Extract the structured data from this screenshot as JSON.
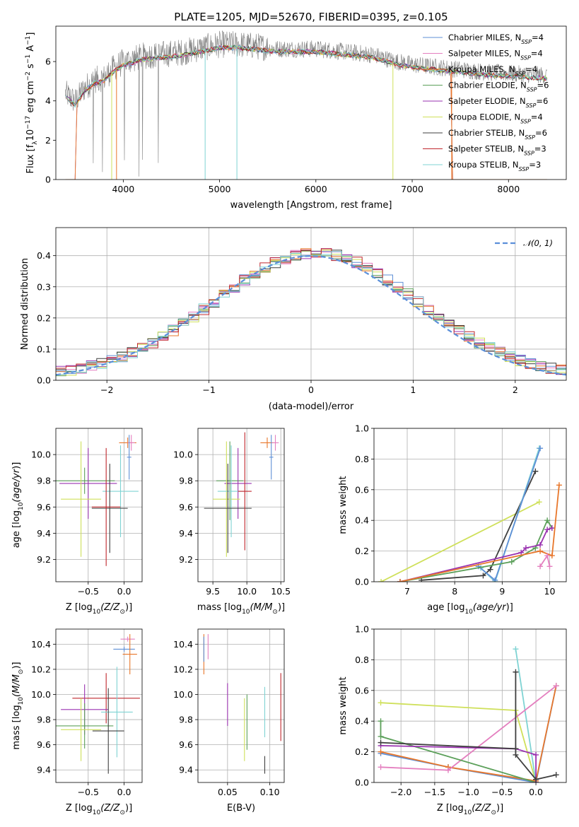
{
  "figure": {
    "title": "PLATE=1205, MJD=52670, FIBERID=0395, z=0.105"
  },
  "colors": {
    "chabrier_miles": "#5e8fd6",
    "salpeter_miles": "#e47fbf",
    "kroupa_miles": "#e8772b",
    "chabrier_elodie": "#5ca05a",
    "salpeter_elodie": "#9a32b0",
    "kroupa_elodie": "#cfe05a",
    "chabrier_stelib": "#3f3f3f",
    "salpeter_stelib": "#c0272d",
    "kroupa_stelib": "#7fd3d3",
    "data_gray": "#7f7f7f",
    "normal_dashed": "#5b8fd9"
  },
  "chart_data": [
    {
      "id": "spectrum",
      "type": "line",
      "title": "PLATE=1205, MJD=52670, FIBERID=0395, z=0.105",
      "xlabel": "wavelength [Angstrom, rest frame]",
      "ylabel": "Flux [f_λ 10^-17 erg cm^-2 s^-1 A^-1]",
      "xlim": [
        3300,
        8600
      ],
      "ylim": [
        0,
        7.8
      ],
      "xticks": [
        "4000",
        "5000",
        "6000",
        "7000",
        "8000"
      ],
      "yticks": [
        "0",
        "2",
        "4",
        "6"
      ],
      "grid": false,
      "legend_position": "right",
      "legend": [
        {
          "label": "Chabrier MILES, N",
          "sub": "SSP",
          "tail": "=4",
          "color": "chabrier_miles"
        },
        {
          "label": "Salpeter MILES, N",
          "sub": "SSP",
          "tail": "=4",
          "color": "salpeter_miles"
        },
        {
          "label": "Kroupa MILES, N",
          "sub": "SSP",
          "tail": "=4",
          "color": "kroupa_miles"
        },
        {
          "label": "Chabrier ELODIE, N",
          "sub": "SSP",
          "tail": "=6",
          "color": "chabrier_elodie"
        },
        {
          "label": "Salpeter ELODIE, N",
          "sub": "SSP",
          "tail": "=6",
          "color": "salpeter_elodie"
        },
        {
          "label": "Kroupa ELODIE, N",
          "sub": "SSP",
          "tail": "=4",
          "color": "kroupa_elodie"
        },
        {
          "label": "Chabrier STELIB, N",
          "sub": "SSP",
          "tail": "=6",
          "color": "chabrier_stelib"
        },
        {
          "label": "Salpeter STELIB, N",
          "sub": "SSP",
          "tail": "=3",
          "color": "salpeter_stelib"
        },
        {
          "label": "Kroupa STELIB, N",
          "sub": "SSP",
          "tail": "=3",
          "color": "kroupa_stelib"
        }
      ],
      "continuum": [
        [
          3400,
          4.3
        ],
        [
          3500,
          3.9
        ],
        [
          3600,
          4.6
        ],
        [
          3700,
          5.0
        ],
        [
          3800,
          5.1
        ],
        [
          3900,
          5.6
        ],
        [
          4000,
          5.9
        ],
        [
          4200,
          6.2
        ],
        [
          4400,
          6.3
        ],
        [
          4600,
          6.4
        ],
        [
          4800,
          6.6
        ],
        [
          5000,
          6.8
        ],
        [
          5200,
          6.8
        ],
        [
          5400,
          6.7
        ],
        [
          5600,
          6.6
        ],
        [
          5800,
          6.6
        ],
        [
          6000,
          6.6
        ],
        [
          6200,
          6.5
        ],
        [
          6400,
          6.4
        ],
        [
          6600,
          6.3
        ],
        [
          6800,
          6.0
        ],
        [
          7000,
          5.8
        ],
        [
          7200,
          5.7
        ],
        [
          7400,
          5.6
        ],
        [
          7600,
          5.5
        ],
        [
          7800,
          5.4
        ],
        [
          8000,
          5.35
        ],
        [
          8200,
          5.3
        ],
        [
          8400,
          5.25
        ]
      ]
    },
    {
      "id": "residuals",
      "type": "line",
      "xlabel": "(data-model)/error",
      "ylabel": "Normed distribution",
      "xlim": [
        -2.5,
        2.5
      ],
      "ylim": [
        0,
        0.49
      ],
      "xticks": [
        "−2",
        "−1",
        "0",
        "1",
        "2"
      ],
      "yticks": [
        "0.0",
        "0.1",
        "0.2",
        "0.3",
        "0.4"
      ],
      "grid": true,
      "legend_position": "top-right",
      "legend": [
        {
          "label": "𝒩(0, 1)",
          "color": "normal_dashed",
          "style": "dashed"
        }
      ],
      "bin_width": 0.1
    },
    {
      "id": "age_vs_Z",
      "type": "scatter",
      "xlabel": "Z [log10(Z/Z⊙)]",
      "ylabel": "age [log10(age/yr)]",
      "xlim": [
        -0.95,
        0.25
      ],
      "ylim": [
        9.03,
        10.2
      ],
      "xticks": [
        "−0.5",
        "0.0"
      ],
      "yticks": [
        "9.2",
        "9.4",
        "9.6",
        "9.8",
        "10.0"
      ],
      "grid": true,
      "points": [
        {
          "color": "kroupa_miles",
          "x": 0.05,
          "y": 10.09,
          "xerr": 0.12,
          "yerr": 0.04
        },
        {
          "color": "salpeter_miles",
          "x": 0.1,
          "y": 10.09,
          "xerr": 0.05,
          "yerr": 0.06
        },
        {
          "color": "chabrier_miles",
          "x": 0.07,
          "y": 9.98,
          "xerr": 0.03,
          "yerr": 0.17
        },
        {
          "color": "chabrier_elodie",
          "x": -0.55,
          "y": 9.8,
          "xerr": 0.42,
          "yerr": 0.1
        },
        {
          "color": "salpeter_elodie",
          "x": -0.5,
          "y": 9.78,
          "xerr": 0.4,
          "yerr": 0.27
        },
        {
          "color": "kroupa_elodie",
          "x": -0.6,
          "y": 9.66,
          "xerr": 0.28,
          "yerr": 0.44
        },
        {
          "color": "kroupa_stelib",
          "x": -0.05,
          "y": 9.72,
          "xerr": 0.25,
          "yerr": 0.35
        },
        {
          "color": "chabrier_stelib",
          "x": -0.2,
          "y": 9.59,
          "xerr": 0.25,
          "yerr": 0.34
        },
        {
          "color": "salpeter_stelib",
          "x": -0.25,
          "y": 9.6,
          "xerr": 0.2,
          "yerr": 0.45
        }
      ]
    },
    {
      "id": "age_vs_mass",
      "type": "scatter",
      "xlabel": "mass [log10(M/M⊙)]",
      "ylabel": "",
      "xlim": [
        9.28,
        10.55
      ],
      "ylim": [
        9.03,
        10.2
      ],
      "xticks": [
        "9.5",
        "10.0",
        "10.5"
      ],
      "yticks": [
        "9.2",
        "9.4",
        "9.6",
        "9.8",
        "10.0"
      ],
      "grid": true,
      "points": [
        {
          "color": "kroupa_miles",
          "x": 10.3,
          "y": 10.09,
          "xerr": 0.1,
          "yerr": 0.04
        },
        {
          "color": "salpeter_miles",
          "x": 10.42,
          "y": 10.09,
          "xerr": 0.05,
          "yerr": 0.06
        },
        {
          "color": "chabrier_miles",
          "x": 10.36,
          "y": 9.98,
          "xerr": 0.03,
          "yerr": 0.17
        },
        {
          "color": "chabrier_elodie",
          "x": 9.75,
          "y": 9.8,
          "xerr": 0.2,
          "yerr": 0.3
        },
        {
          "color": "salpeter_elodie",
          "x": 9.87,
          "y": 9.78,
          "xerr": 0.2,
          "yerr": 0.27
        },
        {
          "color": "kroupa_elodie",
          "x": 9.7,
          "y": 9.66,
          "xerr": 0.2,
          "yerr": 0.44
        },
        {
          "color": "kroupa_stelib",
          "x": 9.77,
          "y": 9.72,
          "xerr": 0.2,
          "yerr": 0.35
        },
        {
          "color": "chabrier_stelib",
          "x": 9.72,
          "y": 9.59,
          "xerr": 0.35,
          "yerr": 0.34
        },
        {
          "color": "salpeter_stelib",
          "x": 9.97,
          "y": 9.72,
          "xerr": 0.1,
          "yerr": 0.45
        }
      ]
    },
    {
      "id": "massweight_vs_age",
      "type": "line",
      "xlabel": "age [log10(age/yr)]",
      "ylabel": "mass weight",
      "xlim": [
        6.3,
        10.35
      ],
      "ylim": [
        0,
        1.0
      ],
      "xticks": [
        "7",
        "8",
        "9",
        "10"
      ],
      "yticks": [
        "0.0",
        "0.2",
        "0.4",
        "0.6",
        "0.8",
        "1.0"
      ],
      "grid": true,
      "series": [
        {
          "color": "kroupa_elodie",
          "x": [
            6.45,
            9.78
          ],
          "y": [
            0.0,
            0.52
          ]
        },
        {
          "color": "chabrier_stelib",
          "x": [
            7.3,
            8.6,
            8.75,
            9.7
          ],
          "y": [
            0.01,
            0.04,
            0.08,
            0.72
          ]
        },
        {
          "color": "kroupa_stelib",
          "x": [
            8.55,
            8.85,
            9.78
          ],
          "y": [
            0.09,
            0.0,
            0.87
          ]
        },
        {
          "color": "chabrier_miles",
          "x": [
            8.5,
            8.85,
            9.8
          ],
          "y": [
            0.1,
            0.01,
            0.87
          ]
        },
        {
          "color": "chabrier_elodie",
          "x": [
            6.85,
            9.2,
            9.7,
            9.95,
            10.05
          ],
          "y": [
            0.0,
            0.13,
            0.22,
            0.4,
            0.35
          ]
        },
        {
          "color": "salpeter_elodie",
          "x": [
            6.85,
            9.4,
            9.5,
            9.8,
            9.95,
            10.05
          ],
          "y": [
            0.0,
            0.19,
            0.22,
            0.24,
            0.34,
            0.35
          ]
        },
        {
          "color": "kroupa_miles",
          "x": [
            6.85,
            9.8,
            10.05,
            10.2
          ],
          "y": [
            0.0,
            0.2,
            0.17,
            0.63
          ]
        },
        {
          "color": "salpeter_miles",
          "x": [
            9.8,
            9.95,
            10.0
          ],
          "y": [
            0.1,
            0.17,
            0.1
          ]
        }
      ]
    },
    {
      "id": "mass_vs_Z",
      "type": "scatter",
      "xlabel": "Z [log10(Z/Z⊙)]",
      "ylabel": "mass [log10(M/M⊙)]",
      "xlim": [
        -0.95,
        0.25
      ],
      "ylim": [
        9.3,
        10.52
      ],
      "xticks": [
        "−0.5",
        "0.0"
      ],
      "yticks": [
        "9.4",
        "9.6",
        "9.8",
        "10.0",
        "10.2",
        "10.4"
      ],
      "grid": true,
      "points": [
        {
          "color": "salpeter_miles",
          "x": 0.05,
          "y": 10.44,
          "xerr": 0.1,
          "yerr": 0.02
        },
        {
          "color": "chabrier_miles",
          "x": 0.0,
          "y": 10.36,
          "xerr": 0.15,
          "yerr": 0.02
        },
        {
          "color": "kroupa_miles",
          "x": 0.08,
          "y": 10.32,
          "xerr": 0.1,
          "yerr": 0.16
        },
        {
          "color": "salpeter_stelib",
          "x": -0.25,
          "y": 9.97,
          "xerr": 0.47,
          "yerr": 0.2
        },
        {
          "color": "salpeter_elodie",
          "x": -0.55,
          "y": 9.88,
          "xerr": 0.33,
          "yerr": 0.2
        },
        {
          "color": "kroupa_stelib",
          "x": -0.1,
          "y": 9.86,
          "xerr": 0.22,
          "yerr": 0.36
        },
        {
          "color": "chabrier_elodie",
          "x": -0.55,
          "y": 9.75,
          "xerr": 0.4,
          "yerr": 0.18
        },
        {
          "color": "kroupa_elodie",
          "x": -0.6,
          "y": 9.72,
          "xerr": 0.28,
          "yerr": 0.25
        },
        {
          "color": "chabrier_stelib",
          "x": -0.22,
          "y": 9.71,
          "xerr": 0.22,
          "yerr": 0.34
        }
      ]
    },
    {
      "id": "mass_vs_ebv",
      "type": "scatter",
      "xlabel": "E(B-V)",
      "ylabel": "",
      "xlim": [
        0.015,
        0.117
      ],
      "ylim": [
        9.3,
        10.52
      ],
      "xticks": [
        "0.05",
        "0.10"
      ],
      "yticks": [
        "9.4",
        "9.6",
        "9.8",
        "10.0",
        "10.2",
        "10.4"
      ],
      "grid": true,
      "points": [
        {
          "color": "salpeter_miles",
          "x": 0.027,
          "y": 10.38,
          "yerr": 0.1
        },
        {
          "color": "kroupa_miles",
          "x": 0.022,
          "y": 10.32,
          "yerr": 0.16
        },
        {
          "color": "chabrier_miles",
          "x": 0.022,
          "y": 10.36,
          "yerr": 0.1
        },
        {
          "color": "salpeter_elodie",
          "x": 0.05,
          "y": 9.92,
          "yerr": 0.17
        },
        {
          "color": "chabrier_elodie",
          "x": 0.073,
          "y": 9.78,
          "yerr": 0.22
        },
        {
          "color": "kroupa_elodie",
          "x": 0.07,
          "y": 9.72,
          "yerr": 0.25
        },
        {
          "color": "kroupa_stelib",
          "x": 0.094,
          "y": 9.86,
          "yerr": 0.2
        },
        {
          "color": "chabrier_stelib",
          "x": 0.094,
          "y": 9.44,
          "yerr": 0.07
        },
        {
          "color": "salpeter_stelib",
          "x": 0.113,
          "y": 9.9,
          "yerr": 0.27
        }
      ]
    },
    {
      "id": "massweight_vs_Z",
      "type": "line",
      "xlabel": "Z [log10(Z/Z⊙)]",
      "ylabel": "mass weight",
      "xlim": [
        -2.4,
        0.45
      ],
      "ylim": [
        0,
        1.0
      ],
      "xticks": [
        "−2.0",
        "−1.5",
        "−1.0",
        "−0.5",
        "0.0"
      ],
      "yticks": [
        "0.0",
        "0.2",
        "0.4",
        "0.6",
        "0.8",
        "1.0"
      ],
      "grid": true,
      "series": [
        {
          "color": "kroupa_elodie",
          "x": [
            -2.3,
            -0.3,
            0.0
          ],
          "y": [
            0.52,
            0.47,
            0.0
          ]
        },
        {
          "color": "kroupa_stelib",
          "x": [
            -0.3,
            0.0
          ],
          "y": [
            0.87,
            0.0
          ]
        },
        {
          "color": "chabrier_miles",
          "x": [
            -2.3,
            -1.3,
            0.0,
            0.3
          ],
          "y": [
            0.19,
            0.1,
            0.0,
            0.63
          ]
        },
        {
          "color": "kroupa_miles",
          "x": [
            -2.3,
            -1.3,
            0.0,
            0.3
          ],
          "y": [
            0.2,
            0.1,
            0.01,
            0.63
          ]
        },
        {
          "color": "salpeter_miles",
          "x": [
            -2.3,
            -1.3,
            0.3
          ],
          "y": [
            0.1,
            0.08,
            0.63
          ]
        },
        {
          "color": "chabrier_elodie",
          "x": [
            -2.3,
            -2.3,
            0.0
          ],
          "y": [
            0.4,
            0.3,
            0.0
          ]
        },
        {
          "color": "salpeter_elodie",
          "x": [
            -2.3,
            -0.3,
            0.0,
            0.0
          ],
          "y": [
            0.24,
            0.22,
            0.18,
            0.0
          ]
        },
        {
          "color": "chabrier_stelib",
          "x": [
            -2.3,
            -0.3,
            -0.3,
            -0.3,
            0.0,
            0.3
          ],
          "y": [
            0.26,
            0.22,
            0.72,
            0.18,
            0.02,
            0.05
          ]
        }
      ]
    }
  ]
}
